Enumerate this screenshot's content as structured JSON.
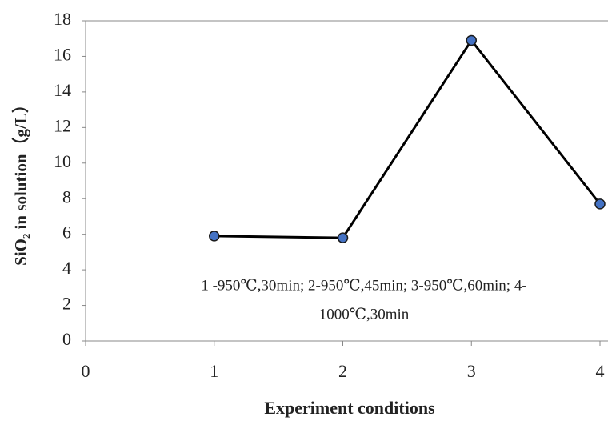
{
  "chart_data": {
    "type": "line",
    "x_label": "Experiment conditions",
    "y_label": "SiO₂ in solution（g/L）",
    "annotation": [
      "1 -950℃,30min; 2-950℃,45min; 3-950℃,60min; 4-",
      "1000℃,30min"
    ],
    "x": [
      1,
      2,
      3,
      4
    ],
    "series": [
      {
        "color": "#000000",
        "marker_color": "#4472c4",
        "values": [
          5.9,
          5.8,
          16.9,
          7.7
        ]
      }
    ],
    "xlim": [
      0,
      4
    ],
    "xticks": [
      0,
      1,
      2,
      3,
      4
    ],
    "ylim": [
      0,
      18
    ],
    "yticks": [
      0,
      2,
      4,
      6,
      8,
      10,
      12,
      14,
      16,
      18
    ],
    "grid": false
  }
}
